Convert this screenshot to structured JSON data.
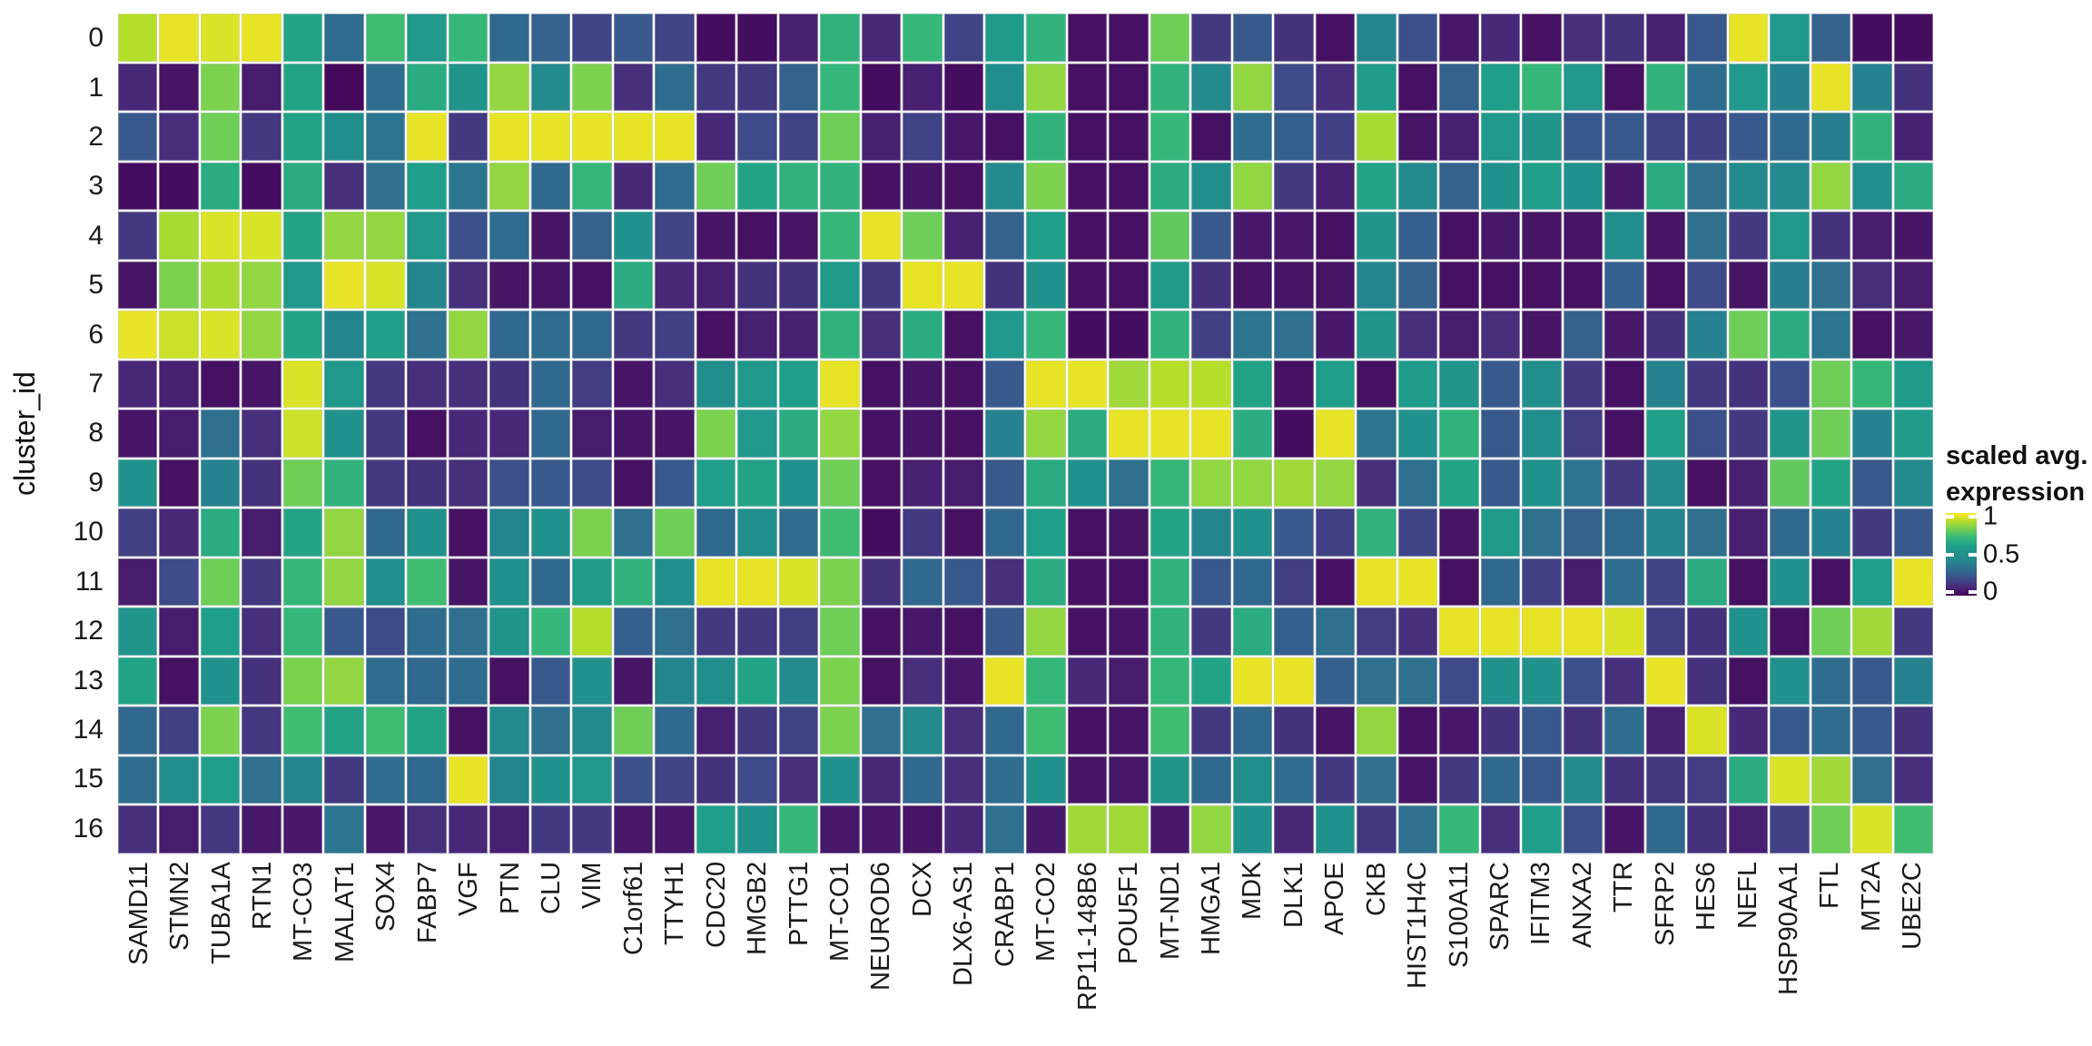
{
  "figure": {
    "y_axis_title": "cluster_id",
    "legend": {
      "title_line1": "scaled avg.",
      "title_line2": "expression",
      "tick_labels": [
        "1",
        "0.5",
        "0"
      ],
      "tick_values": [
        1,
        0.5,
        0
      ]
    }
  },
  "chart_data": {
    "type": "heatmap",
    "title": "",
    "xlabel": "",
    "ylabel": "cluster_id",
    "legend_title": "scaled avg. expression",
    "legend_position": "right",
    "value_range": [
      0,
      1
    ],
    "grid": "off",
    "colorscale": "viridis",
    "colormap_stops": [
      "#440154",
      "#482878",
      "#3e4a89",
      "#31688e",
      "#26828e",
      "#21918c",
      "#1f9e89",
      "#35b779",
      "#6ece58",
      "#b5de2b",
      "#fde725"
    ],
    "rows": [
      "0",
      "1",
      "2",
      "3",
      "4",
      "5",
      "6",
      "7",
      "8",
      "9",
      "10",
      "11",
      "12",
      "13",
      "14",
      "15",
      "16"
    ],
    "columns": [
      "SAMD11",
      "STMN2",
      "TUBA1A",
      "RTN1",
      "MT-CO3",
      "MALAT1",
      "SOX4",
      "FABP7",
      "VGF",
      "PTN",
      "CLU",
      "VIM",
      "C1orf61",
      "TTYH1",
      "CDC20",
      "HMGB2",
      "PTTG1",
      "MT-CO1",
      "NEUROD6",
      "DCX",
      "DLX6-AS1",
      "CRABP1",
      "MT-CO2",
      "RP11-148B6",
      "POU5F1",
      "MT-ND1",
      "HMGA1",
      "MDK",
      "DLK1",
      "APOE",
      "CKB",
      "HIST1H4C",
      "S100A11",
      "SPARC",
      "IFITM3",
      "ANXA2",
      "TTR",
      "SFRP2",
      "HES6",
      "NEFL",
      "HSP90AA1",
      "FTL",
      "MT2A",
      "UBE2C"
    ],
    "values": [
      [
        0.9,
        0.97,
        0.95,
        0.97,
        0.62,
        0.32,
        0.72,
        0.55,
        0.7,
        0.3,
        0.28,
        0.18,
        0.25,
        0.18,
        0.03,
        0.03,
        0.08,
        0.68,
        0.1,
        0.7,
        0.18,
        0.58,
        0.68,
        0.04,
        0.04,
        0.8,
        0.15,
        0.25,
        0.13,
        0.04,
        0.42,
        0.22,
        0.06,
        0.1,
        0.04,
        0.12,
        0.13,
        0.08,
        0.25,
        0.97,
        0.55,
        0.28,
        0.03,
        0.03
      ],
      [
        0.1,
        0.05,
        0.82,
        0.07,
        0.62,
        0.02,
        0.32,
        0.65,
        0.52,
        0.85,
        0.45,
        0.82,
        0.12,
        0.32,
        0.15,
        0.15,
        0.28,
        0.7,
        0.03,
        0.08,
        0.03,
        0.48,
        0.85,
        0.04,
        0.04,
        0.68,
        0.45,
        0.85,
        0.2,
        0.12,
        0.58,
        0.04,
        0.28,
        0.6,
        0.7,
        0.55,
        0.04,
        0.68,
        0.32,
        0.55,
        0.4,
        0.97,
        0.4,
        0.13
      ],
      [
        0.25,
        0.12,
        0.8,
        0.15,
        0.62,
        0.48,
        0.35,
        0.97,
        0.15,
        0.97,
        0.97,
        0.97,
        0.97,
        0.97,
        0.1,
        0.2,
        0.18,
        0.8,
        0.08,
        0.18,
        0.06,
        0.04,
        0.68,
        0.04,
        0.04,
        0.7,
        0.04,
        0.32,
        0.27,
        0.17,
        0.88,
        0.05,
        0.08,
        0.55,
        0.52,
        0.25,
        0.25,
        0.18,
        0.17,
        0.25,
        0.3,
        0.38,
        0.68,
        0.08
      ],
      [
        0.03,
        0.03,
        0.65,
        0.03,
        0.65,
        0.12,
        0.33,
        0.6,
        0.35,
        0.85,
        0.3,
        0.7,
        0.1,
        0.32,
        0.8,
        0.62,
        0.68,
        0.68,
        0.04,
        0.05,
        0.04,
        0.45,
        0.82,
        0.04,
        0.04,
        0.65,
        0.48,
        0.85,
        0.15,
        0.08,
        0.62,
        0.45,
        0.28,
        0.5,
        0.6,
        0.5,
        0.06,
        0.65,
        0.33,
        0.45,
        0.45,
        0.85,
        0.48,
        0.65
      ],
      [
        0.15,
        0.88,
        0.95,
        0.95,
        0.62,
        0.85,
        0.85,
        0.55,
        0.22,
        0.32,
        0.05,
        0.28,
        0.5,
        0.18,
        0.05,
        0.04,
        0.05,
        0.7,
        0.97,
        0.8,
        0.08,
        0.28,
        0.6,
        0.04,
        0.04,
        0.78,
        0.25,
        0.06,
        0.06,
        0.04,
        0.52,
        0.27,
        0.04,
        0.06,
        0.05,
        0.05,
        0.48,
        0.05,
        0.33,
        0.15,
        0.55,
        0.13,
        0.07,
        0.05
      ],
      [
        0.05,
        0.82,
        0.88,
        0.85,
        0.55,
        0.97,
        0.95,
        0.42,
        0.12,
        0.05,
        0.05,
        0.04,
        0.65,
        0.1,
        0.08,
        0.13,
        0.13,
        0.58,
        0.15,
        0.97,
        0.97,
        0.13,
        0.5,
        0.04,
        0.04,
        0.58,
        0.13,
        0.05,
        0.05,
        0.05,
        0.42,
        0.28,
        0.04,
        0.04,
        0.04,
        0.04,
        0.27,
        0.04,
        0.2,
        0.05,
        0.38,
        0.33,
        0.12,
        0.07
      ],
      [
        0.97,
        0.93,
        0.95,
        0.85,
        0.62,
        0.42,
        0.6,
        0.33,
        0.85,
        0.3,
        0.32,
        0.3,
        0.15,
        0.17,
        0.04,
        0.08,
        0.08,
        0.68,
        0.12,
        0.65,
        0.04,
        0.55,
        0.7,
        0.03,
        0.03,
        0.68,
        0.17,
        0.35,
        0.33,
        0.06,
        0.52,
        0.12,
        0.07,
        0.12,
        0.05,
        0.28,
        0.06,
        0.13,
        0.4,
        0.8,
        0.65,
        0.35,
        0.04,
        0.06
      ],
      [
        0.1,
        0.08,
        0.04,
        0.05,
        0.95,
        0.55,
        0.15,
        0.12,
        0.12,
        0.13,
        0.3,
        0.16,
        0.05,
        0.12,
        0.48,
        0.55,
        0.6,
        0.97,
        0.04,
        0.05,
        0.04,
        0.25,
        0.97,
        0.97,
        0.87,
        0.9,
        0.9,
        0.62,
        0.04,
        0.6,
        0.04,
        0.58,
        0.52,
        0.25,
        0.48,
        0.15,
        0.04,
        0.4,
        0.15,
        0.13,
        0.22,
        0.8,
        0.7,
        0.58
      ],
      [
        0.05,
        0.07,
        0.33,
        0.12,
        0.93,
        0.5,
        0.15,
        0.04,
        0.1,
        0.1,
        0.3,
        0.07,
        0.05,
        0.05,
        0.82,
        0.55,
        0.65,
        0.85,
        0.04,
        0.05,
        0.04,
        0.4,
        0.85,
        0.65,
        0.97,
        0.97,
        0.97,
        0.65,
        0.03,
        0.97,
        0.35,
        0.5,
        0.68,
        0.25,
        0.48,
        0.16,
        0.04,
        0.6,
        0.22,
        0.15,
        0.52,
        0.8,
        0.4,
        0.58
      ],
      [
        0.5,
        0.04,
        0.4,
        0.13,
        0.8,
        0.68,
        0.15,
        0.13,
        0.12,
        0.22,
        0.25,
        0.2,
        0.04,
        0.25,
        0.6,
        0.62,
        0.5,
        0.8,
        0.04,
        0.08,
        0.07,
        0.25,
        0.65,
        0.5,
        0.33,
        0.7,
        0.85,
        0.85,
        0.87,
        0.85,
        0.12,
        0.33,
        0.62,
        0.25,
        0.5,
        0.35,
        0.15,
        0.45,
        0.04,
        0.08,
        0.78,
        0.62,
        0.25,
        0.45
      ],
      [
        0.17,
        0.1,
        0.65,
        0.07,
        0.62,
        0.85,
        0.3,
        0.5,
        0.04,
        0.42,
        0.5,
        0.82,
        0.33,
        0.8,
        0.3,
        0.48,
        0.32,
        0.72,
        0.03,
        0.15,
        0.04,
        0.3,
        0.6,
        0.04,
        0.05,
        0.62,
        0.42,
        0.5,
        0.25,
        0.17,
        0.68,
        0.18,
        0.05,
        0.58,
        0.33,
        0.28,
        0.3,
        0.42,
        0.33,
        0.08,
        0.3,
        0.4,
        0.15,
        0.25
      ],
      [
        0.07,
        0.2,
        0.8,
        0.15,
        0.7,
        0.85,
        0.48,
        0.72,
        0.05,
        0.5,
        0.3,
        0.58,
        0.68,
        0.48,
        0.97,
        0.97,
        0.95,
        0.82,
        0.13,
        0.3,
        0.25,
        0.12,
        0.65,
        0.04,
        0.04,
        0.68,
        0.25,
        0.3,
        0.16,
        0.04,
        0.97,
        0.97,
        0.04,
        0.3,
        0.17,
        0.07,
        0.32,
        0.18,
        0.65,
        0.04,
        0.5,
        0.04,
        0.6,
        0.97
      ],
      [
        0.52,
        0.07,
        0.6,
        0.12,
        0.7,
        0.25,
        0.2,
        0.32,
        0.33,
        0.52,
        0.7,
        0.9,
        0.27,
        0.33,
        0.15,
        0.15,
        0.17,
        0.8,
        0.04,
        0.06,
        0.04,
        0.25,
        0.85,
        0.04,
        0.05,
        0.68,
        0.15,
        0.65,
        0.27,
        0.33,
        0.16,
        0.12,
        0.97,
        0.97,
        0.97,
        0.97,
        0.95,
        0.17,
        0.13,
        0.5,
        0.04,
        0.8,
        0.87,
        0.15
      ],
      [
        0.62,
        0.04,
        0.5,
        0.13,
        0.82,
        0.85,
        0.32,
        0.3,
        0.32,
        0.04,
        0.25,
        0.5,
        0.05,
        0.42,
        0.48,
        0.62,
        0.45,
        0.82,
        0.04,
        0.12,
        0.06,
        0.97,
        0.7,
        0.1,
        0.07,
        0.7,
        0.62,
        0.97,
        0.97,
        0.27,
        0.33,
        0.33,
        0.2,
        0.5,
        0.5,
        0.22,
        0.12,
        0.97,
        0.13,
        0.04,
        0.5,
        0.32,
        0.25,
        0.4
      ],
      [
        0.3,
        0.17,
        0.82,
        0.14,
        0.72,
        0.62,
        0.72,
        0.62,
        0.04,
        0.45,
        0.33,
        0.45,
        0.8,
        0.3,
        0.08,
        0.15,
        0.18,
        0.82,
        0.33,
        0.45,
        0.12,
        0.3,
        0.72,
        0.04,
        0.05,
        0.72,
        0.15,
        0.3,
        0.13,
        0.05,
        0.85,
        0.04,
        0.06,
        0.13,
        0.25,
        0.13,
        0.32,
        0.08,
        0.95,
        0.1,
        0.25,
        0.32,
        0.25,
        0.13
      ],
      [
        0.32,
        0.48,
        0.6,
        0.33,
        0.42,
        0.15,
        0.32,
        0.3,
        0.97,
        0.42,
        0.5,
        0.55,
        0.22,
        0.18,
        0.13,
        0.2,
        0.12,
        0.5,
        0.1,
        0.3,
        0.12,
        0.32,
        0.5,
        0.05,
        0.06,
        0.52,
        0.3,
        0.48,
        0.32,
        0.15,
        0.33,
        0.05,
        0.15,
        0.3,
        0.25,
        0.45,
        0.13,
        0.15,
        0.16,
        0.65,
        0.95,
        0.87,
        0.33,
        0.12
      ],
      [
        0.12,
        0.07,
        0.14,
        0.06,
        0.06,
        0.35,
        0.06,
        0.12,
        0.1,
        0.08,
        0.15,
        0.15,
        0.06,
        0.06,
        0.6,
        0.5,
        0.7,
        0.06,
        0.06,
        0.05,
        0.1,
        0.33,
        0.06,
        0.87,
        0.87,
        0.06,
        0.85,
        0.5,
        0.1,
        0.5,
        0.15,
        0.33,
        0.7,
        0.12,
        0.6,
        0.22,
        0.05,
        0.3,
        0.13,
        0.08,
        0.17,
        0.8,
        0.95,
        0.72
      ]
    ]
  }
}
